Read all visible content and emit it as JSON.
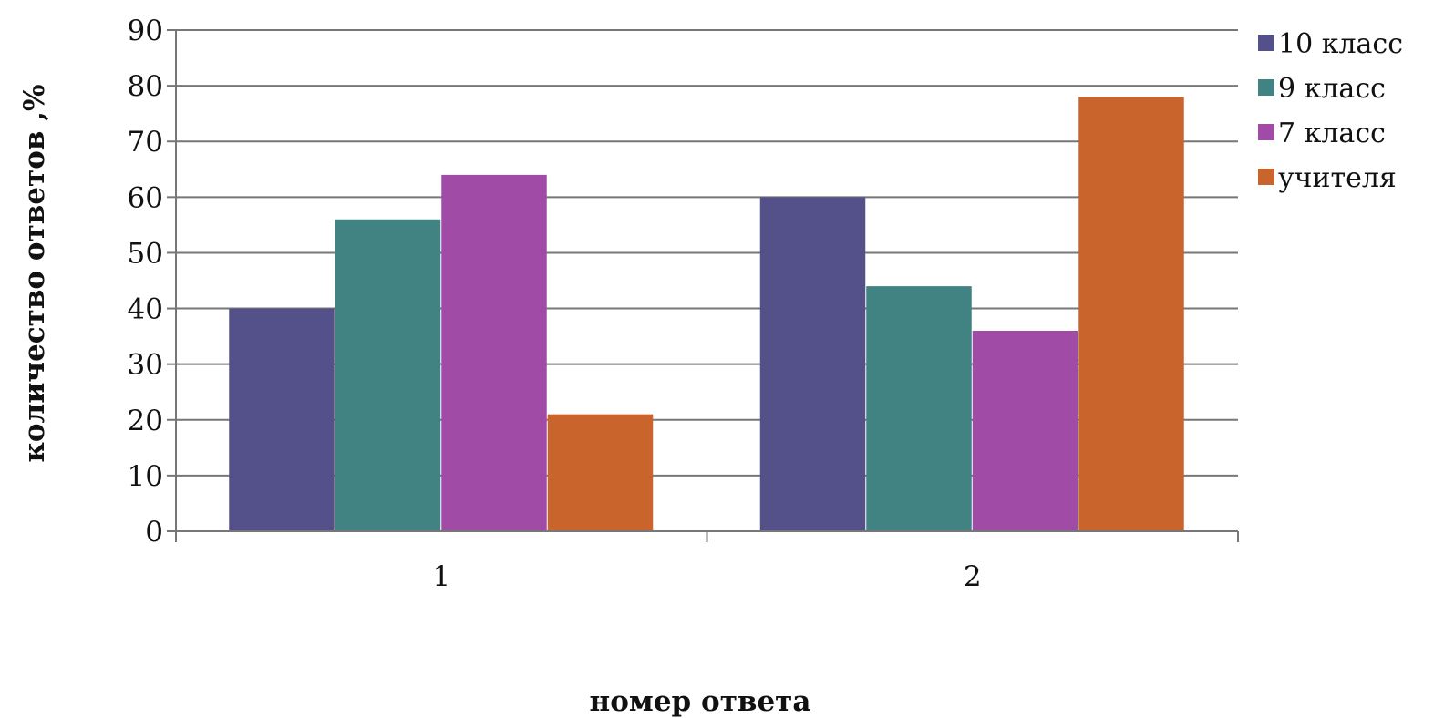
{
  "chart_data": {
    "type": "bar",
    "categories": [
      "1",
      "2"
    ],
    "series": [
      {
        "name": "10 класс",
        "values": [
          40,
          60
        ],
        "color": "#54508A"
      },
      {
        "name": "9 класс",
        "values": [
          56,
          44
        ],
        "color": "#418283"
      },
      {
        "name": "7 класс",
        "values": [
          64,
          36
        ],
        "color": "#A04BA5"
      },
      {
        "name": "учителя",
        "values": [
          21,
          78
        ],
        "color": "#C9652C"
      }
    ],
    "xlabel": "номер ответа",
    "ylabel": "количество ответов ,%",
    "ylim": [
      0,
      90
    ],
    "yticks": [
      0,
      10,
      20,
      30,
      40,
      50,
      60,
      70,
      80,
      90
    ],
    "grid": true,
    "legend_position": "right-top"
  }
}
